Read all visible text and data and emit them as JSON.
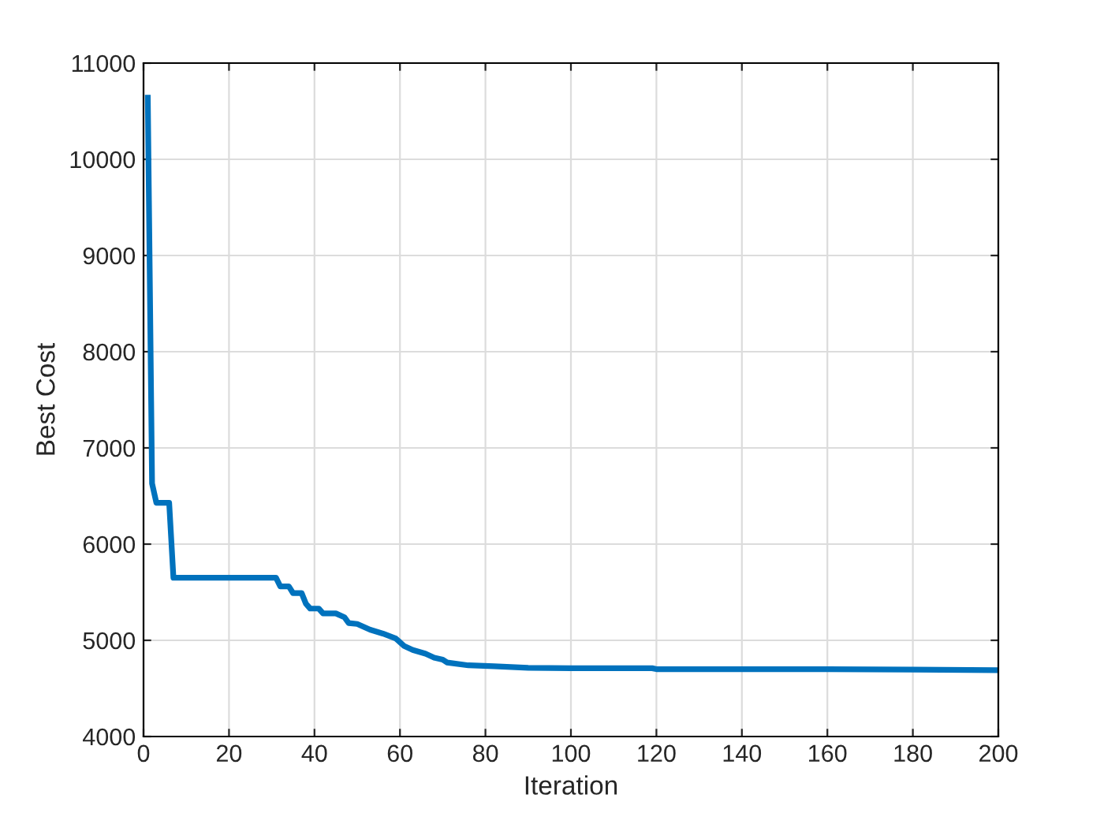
{
  "chart_data": {
    "type": "line",
    "xlabel": "Iteration",
    "ylabel": "Best Cost",
    "x": [
      1,
      2,
      3,
      6,
      7,
      31,
      32,
      34,
      35,
      37,
      38,
      39,
      41,
      42,
      45,
      47,
      48,
      50,
      53,
      56,
      59,
      61,
      63,
      66,
      68,
      70,
      71,
      76,
      82,
      90,
      100,
      119,
      120,
      160,
      180,
      200
    ],
    "series": [
      {
        "color": "#0072bd",
        "values": [
          10640,
          6630,
          6430,
          6430,
          5650,
          5650,
          5560,
          5560,
          5490,
          5490,
          5380,
          5330,
          5330,
          5280,
          5280,
          5240,
          5180,
          5170,
          5110,
          5070,
          5020,
          4940,
          4900,
          4860,
          4820,
          4800,
          4770,
          4740,
          4730,
          4715,
          4710,
          4710,
          4700,
          4700,
          4695,
          4690
        ]
      }
    ],
    "xlim": [
      0,
      200
    ],
    "xticks": [
      0,
      20,
      40,
      60,
      80,
      100,
      120,
      140,
      160,
      180,
      200
    ],
    "ylim": [
      4000,
      11000
    ],
    "yticks": [
      4000,
      5000,
      6000,
      7000,
      8000,
      9000,
      10000,
      11000
    ],
    "grid": true,
    "marker": "none",
    "line_style": "solid"
  }
}
